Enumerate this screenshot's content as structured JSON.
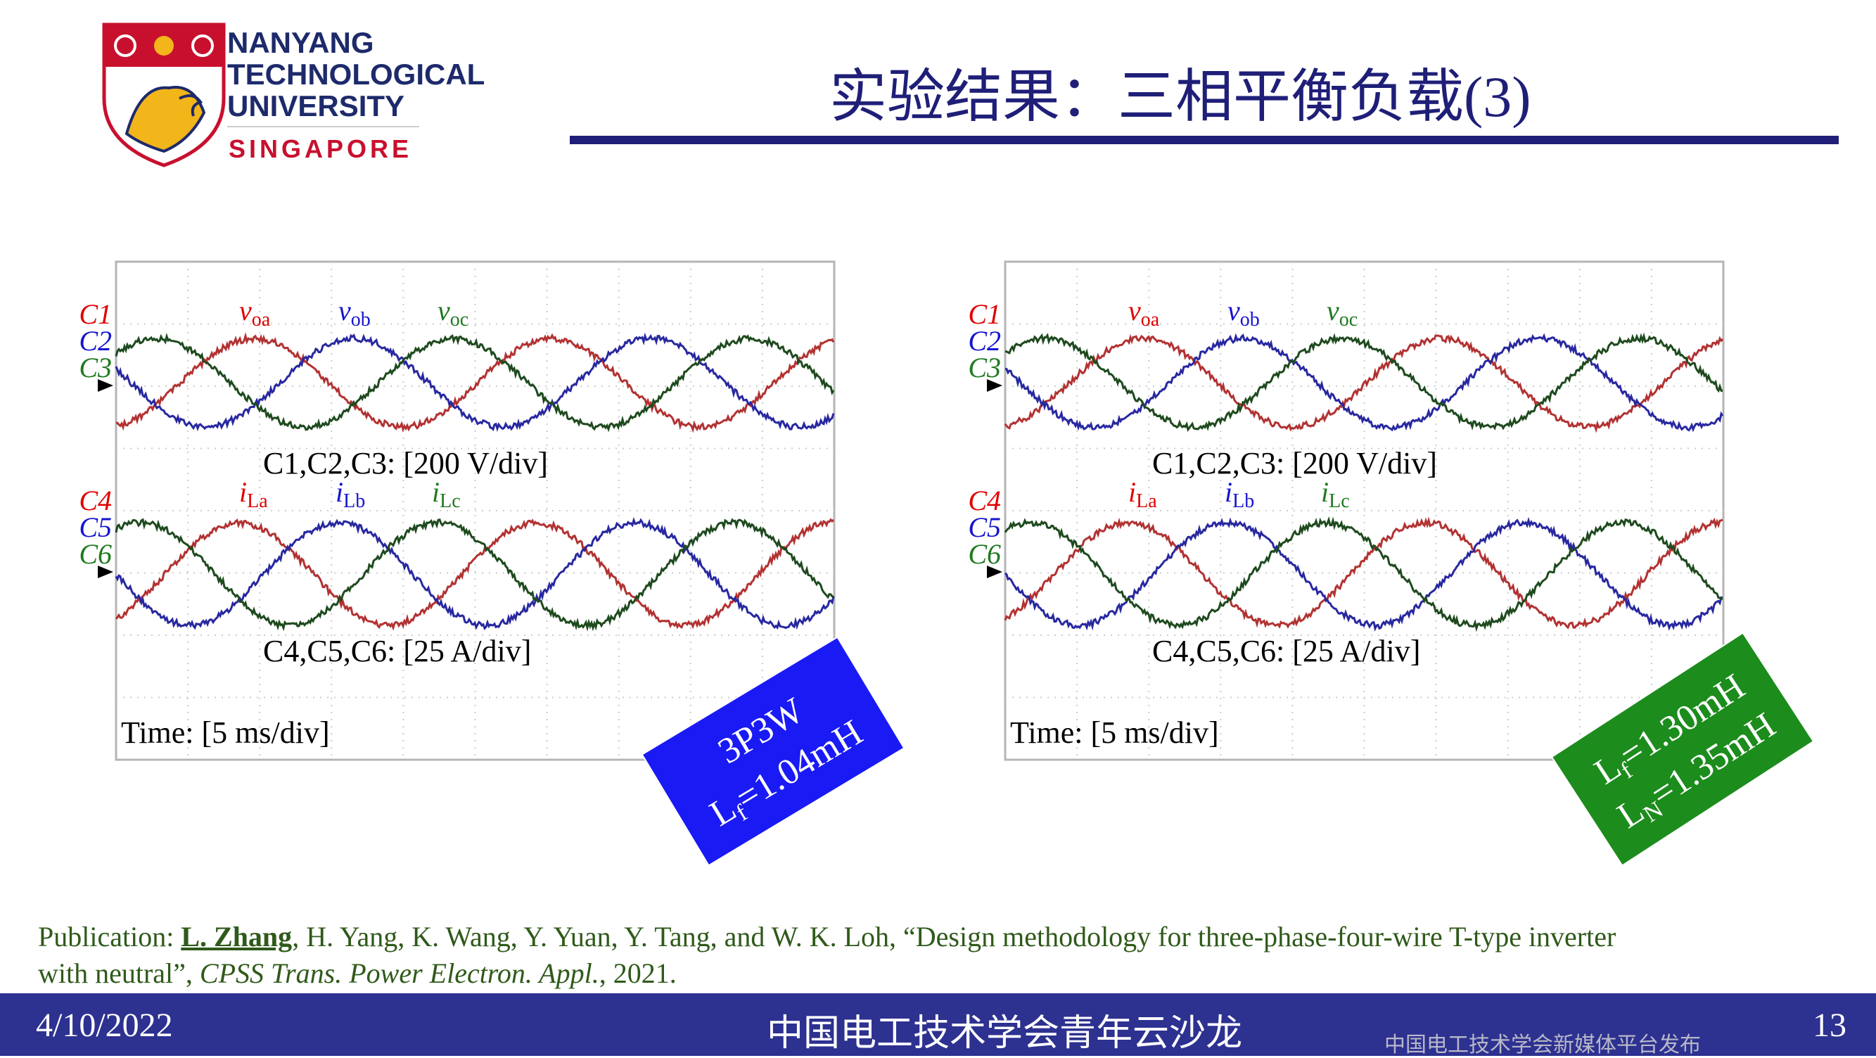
{
  "header": {
    "logo_lines": [
      "NANYANG",
      "TECHNOLOGICAL",
      "UNIVERSITY",
      "SINGAPORE"
    ],
    "title": "实验结果：三相平衡负载(3)"
  },
  "panels": [
    {
      "voltage_channels": [
        "C1",
        "C2",
        "C3"
      ],
      "voltage_signals": [
        {
          "main": "v",
          "sub": "oa"
        },
        {
          "main": "v",
          "sub": "ob"
        },
        {
          "main": "v",
          "sub": "oc"
        }
      ],
      "voltage_scale": "C1,C2,C3: [200 V/div]",
      "current_channels": [
        "C4",
        "C5",
        "C6"
      ],
      "current_signals": [
        {
          "main": "i",
          "sub": "La"
        },
        {
          "main": "i",
          "sub": "Lb"
        },
        {
          "main": "i",
          "sub": "Lc"
        }
      ],
      "current_scale": "C4,C5,C6: [25 A/div]",
      "time_scale": "Time: [5 ms/div]",
      "badge": {
        "color": "#1a1af5",
        "lines": [
          {
            "main": "3P3W"
          },
          {
            "main": "L",
            "sub": "f",
            "rest": "=1.04mH"
          }
        ]
      }
    },
    {
      "voltage_channels": [
        "C1",
        "C2",
        "C3"
      ],
      "voltage_signals": [
        {
          "main": "v",
          "sub": "oa"
        },
        {
          "main": "v",
          "sub": "ob"
        },
        {
          "main": "v",
          "sub": "oc"
        }
      ],
      "voltage_scale": "C1,C2,C3: [200 V/div]",
      "current_channels": [
        "C4",
        "C5",
        "C6"
      ],
      "current_signals": [
        {
          "main": "i",
          "sub": "La"
        },
        {
          "main": "i",
          "sub": "Lb"
        },
        {
          "main": "i",
          "sub": "Lc"
        }
      ],
      "current_scale": "C4,C5,C6: [25 A/div]",
      "time_scale": "Time: [5 ms/div]",
      "badge": {
        "color": "#1c8c1c",
        "lines": [
          {
            "main": "L",
            "sub": "f",
            "rest": "=1.30mH"
          },
          {
            "main": "L",
            "sub": "N",
            "rest": "=1.35mH"
          }
        ]
      }
    }
  ],
  "publication": {
    "label": "Publication: ",
    "first_author": "L. Zhang",
    "line1_rest": ", H. Yang, K. Wang, Y. Yuan, Y. Tang, and W. K. Loh, “Design methodology for three-phase-four-wire T-type inverter",
    "line2_start": "with neutral”, ",
    "journal": "CPSS Trans. Power Electron. Appl.",
    "year": ", 2021."
  },
  "footer": {
    "date": "4/10/2022",
    "center": "中国电工技术学会青年云沙龙",
    "watermark": "中国电工技术学会新媒体平台发布",
    "page": "13"
  }
}
